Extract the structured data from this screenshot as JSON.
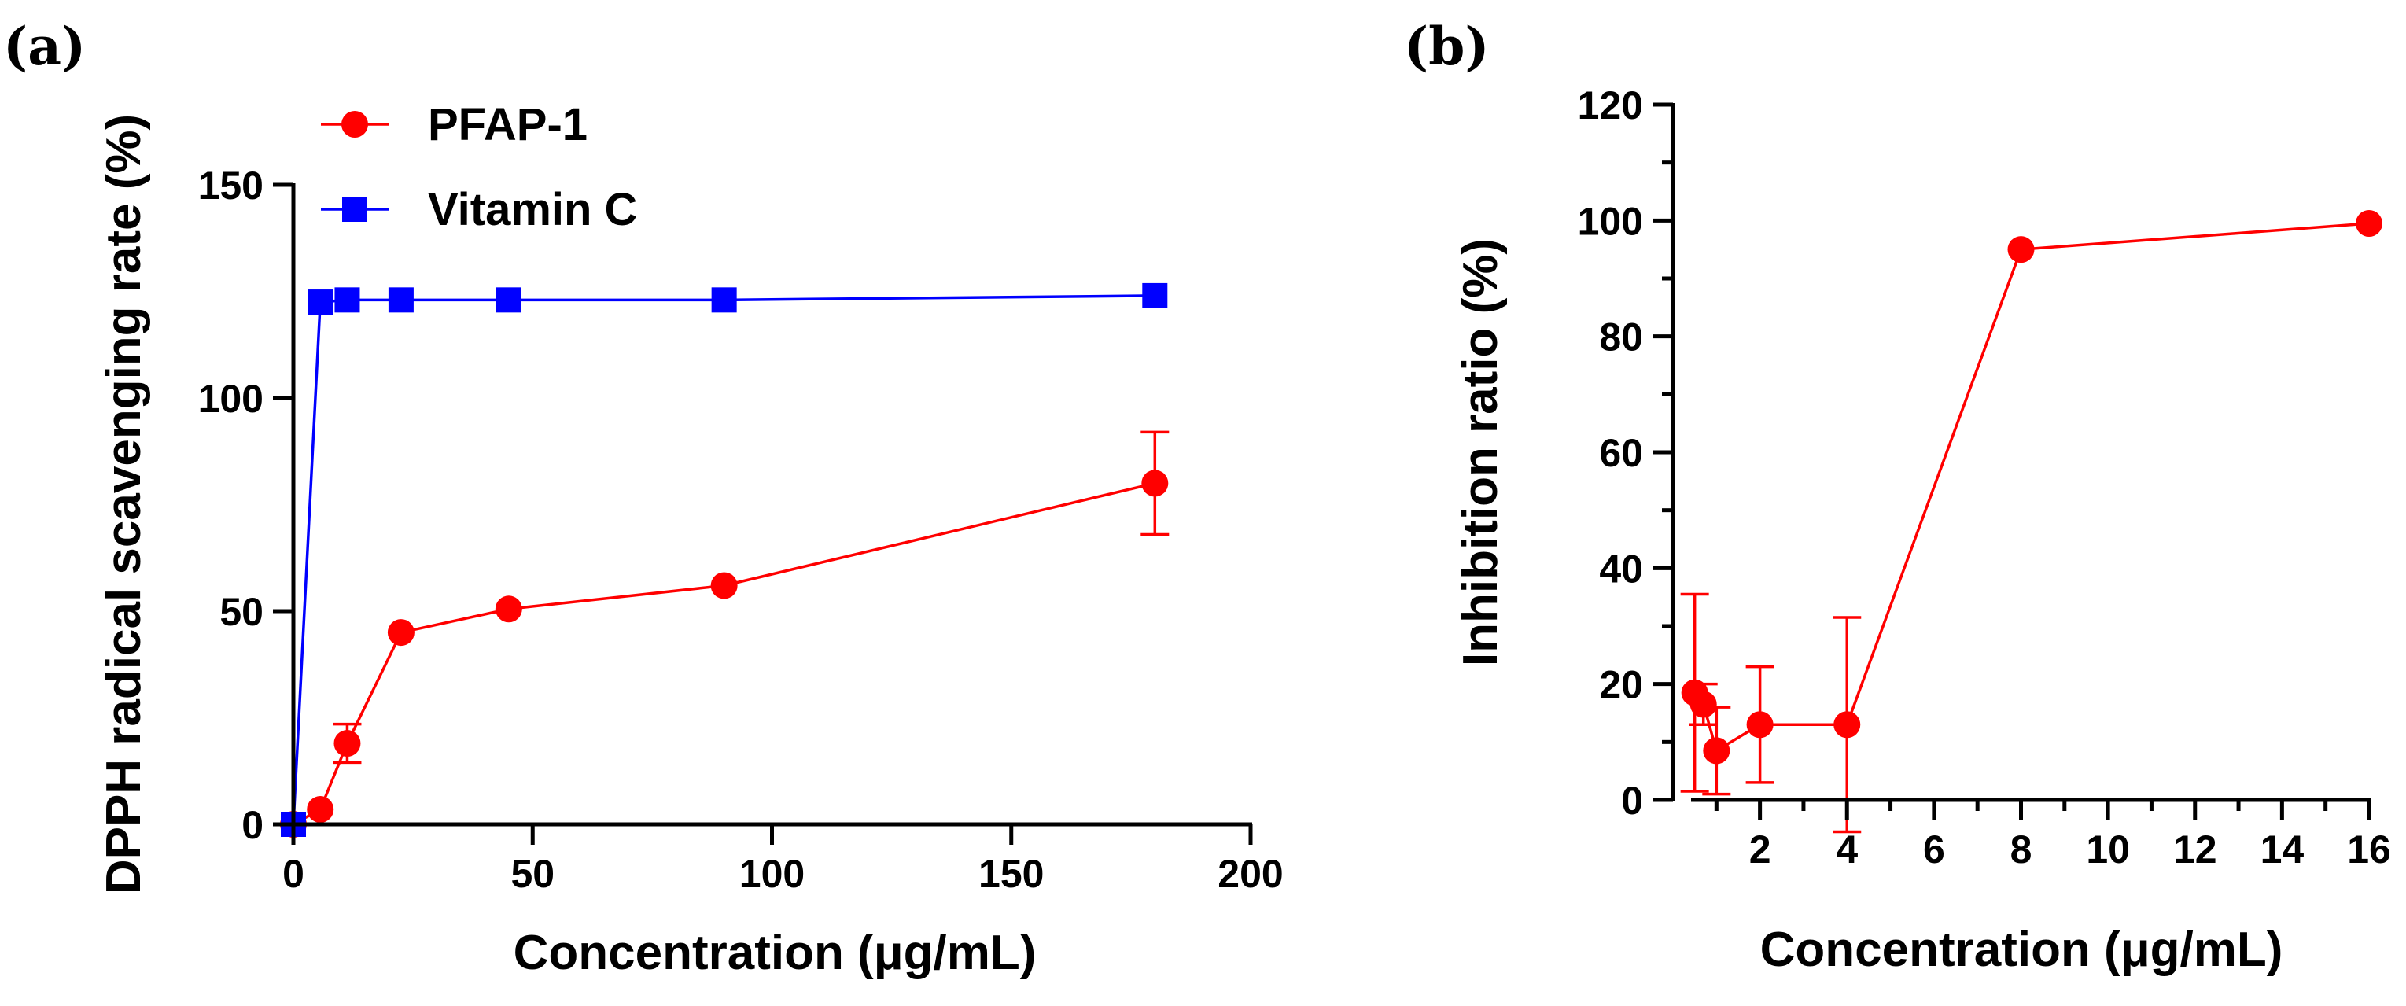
{
  "chart_data": [
    {
      "panel_label": "(a)",
      "type": "line",
      "xlabel": "Concentration (μg/mL)",
      "ylabel": "DPPH radical scavenging rate (%)",
      "xlim": [
        0,
        200
      ],
      "ylim": [
        0,
        150
      ],
      "xticks": [
        0,
        50,
        100,
        150,
        200
      ],
      "yticks": [
        0,
        50,
        100,
        150
      ],
      "xtick_labels": [
        "0",
        "50",
        "100",
        "150",
        "200"
      ],
      "ytick_labels": [
        "0",
        "50",
        "100",
        "150"
      ],
      "legend_position": "top-left",
      "series": [
        {
          "name": "PFAP-1",
          "color": "#ff0000",
          "marker": "circle",
          "x": [
            0,
            5.625,
            11.25,
            22.5,
            45,
            90,
            180
          ],
          "values": [
            0,
            3.5,
            19,
            45,
            50.5,
            56,
            80
          ],
          "err": [
            0,
            0,
            4.5,
            0,
            0,
            0,
            12
          ]
        },
        {
          "name": "Vitamin C",
          "color": "#0000ff",
          "marker": "square",
          "x": [
            0,
            5.625,
            11.25,
            22.5,
            45,
            90,
            180
          ],
          "values": [
            0,
            122.5,
            123,
            123,
            123,
            123,
            124
          ],
          "err": [
            0,
            0,
            0,
            0,
            0,
            0,
            0
          ]
        }
      ]
    },
    {
      "panel_label": "(b)",
      "type": "line",
      "xlabel": "Concentration (μg/mL)",
      "ylabel": "Inhibition ratio (%)",
      "xlim": [
        0,
        16
      ],
      "ylim": [
        0,
        120
      ],
      "xticks": [
        2,
        4,
        6,
        8,
        10,
        12,
        14,
        16
      ],
      "yticks": [
        0,
        20,
        40,
        60,
        80,
        100,
        120
      ],
      "xtick_labels": [
        "2",
        "4",
        "6",
        "8",
        "10",
        "12",
        "14",
        "16"
      ],
      "ytick_labels": [
        "0",
        "20",
        "40",
        "60",
        "80",
        "100",
        "120"
      ],
      "series": [
        {
          "name": "Inhibition ratio",
          "color": "#ff0000",
          "marker": "circle",
          "x": [
            0.5,
            0.7,
            1,
            2,
            4,
            8,
            16
          ],
          "values": [
            18.5,
            16.5,
            8.5,
            13,
            13,
            95,
            99.5
          ],
          "err": [
            17,
            3.5,
            7.5,
            10,
            18.5,
            0,
            0
          ]
        }
      ]
    }
  ]
}
